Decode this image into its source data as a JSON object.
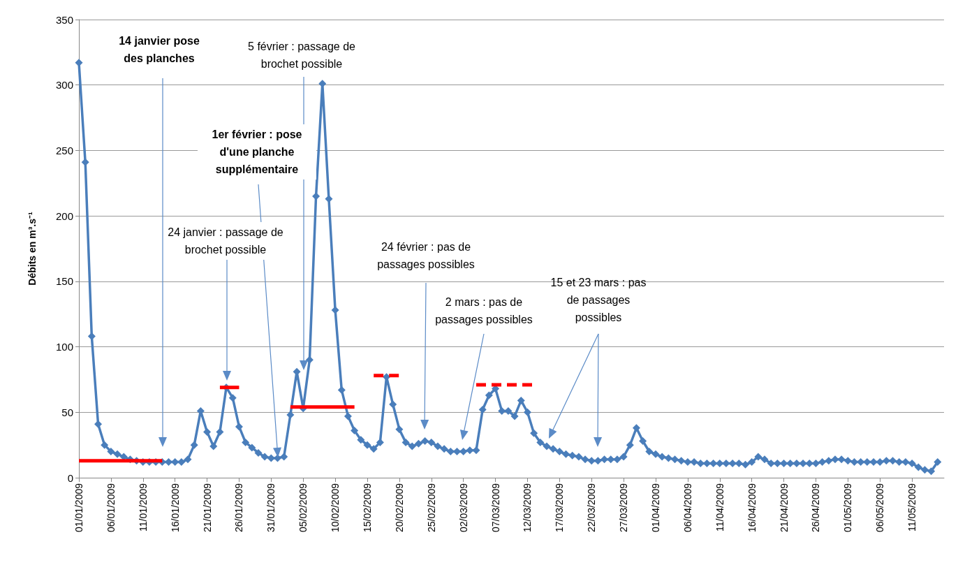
{
  "chart_data": {
    "type": "line",
    "ylabel": "Débits en m³.s⁻¹",
    "xlim": [
      "2009-01-01",
      "2009-05-16"
    ],
    "xticks": [
      {
        "value": "2009-01-01",
        "label": "01/01/2009"
      },
      {
        "value": "2009-01-06",
        "label": "06/01/2009"
      },
      {
        "value": "2009-01-11",
        "label": "11/01/2009"
      },
      {
        "value": "2009-01-16",
        "label": "16/01/2009"
      },
      {
        "value": "2009-01-21",
        "label": "21/01/2009"
      },
      {
        "value": "2009-01-26",
        "label": "26/01/2009"
      },
      {
        "value": "2009-01-31",
        "label": "31/01/2009"
      },
      {
        "value": "2009-02-05",
        "label": "05/02/2009"
      },
      {
        "value": "2009-02-10",
        "label": "10/02/2009"
      },
      {
        "value": "2009-02-15",
        "label": "15/02/2009"
      },
      {
        "value": "2009-02-20",
        "label": "20/02/2009"
      },
      {
        "value": "2009-02-25",
        "label": "25/02/2009"
      },
      {
        "value": "2009-03-02",
        "label": "02/03/2009"
      },
      {
        "value": "2009-03-07",
        "label": "07/03/2009"
      },
      {
        "value": "2009-03-12",
        "label": "12/03/2009"
      },
      {
        "value": "2009-03-17",
        "label": "17/03/2009"
      },
      {
        "value": "2009-03-22",
        "label": "22/03/2009"
      },
      {
        "value": "2009-03-27",
        "label": "27/03/2009"
      },
      {
        "value": "2009-04-01",
        "label": "01/04/2009"
      },
      {
        "value": "2009-04-06",
        "label": "06/04/2009"
      },
      {
        "value": "2009-04-11",
        "label": "11/04/2009"
      },
      {
        "value": "2009-04-16",
        "label": "16/04/2009"
      },
      {
        "value": "2009-04-21",
        "label": "21/04/2009"
      },
      {
        "value": "2009-04-26",
        "label": "26/04/2009"
      },
      {
        "value": "2009-05-01",
        "label": "01/05/2009"
      },
      {
        "value": "2009-05-06",
        "label": "06/05/2009"
      },
      {
        "value": "2009-05-11",
        "label": "11/05/2009"
      }
    ],
    "ylim": [
      0,
      350
    ],
    "yticks": [
      0,
      50,
      100,
      150,
      200,
      250,
      300,
      350
    ],
    "grid": "y",
    "series": [
      {
        "color": "#4a7ebb",
        "marker": "diamond",
        "line_style": "solid",
        "x": [
          "2009-01-01",
          "2009-01-02",
          "2009-01-03",
          "2009-01-04",
          "2009-01-05",
          "2009-01-06",
          "2009-01-07",
          "2009-01-08",
          "2009-01-09",
          "2009-01-10",
          "2009-01-11",
          "2009-01-12",
          "2009-01-13",
          "2009-01-14",
          "2009-01-15",
          "2009-01-16",
          "2009-01-17",
          "2009-01-18",
          "2009-01-19",
          "2009-01-20",
          "2009-01-21",
          "2009-01-22",
          "2009-01-23",
          "2009-01-24",
          "2009-01-25",
          "2009-01-26",
          "2009-01-27",
          "2009-01-28",
          "2009-01-29",
          "2009-01-30",
          "2009-01-31",
          "2009-02-01",
          "2009-02-02",
          "2009-02-03",
          "2009-02-04",
          "2009-02-05",
          "2009-02-06",
          "2009-02-07",
          "2009-02-08",
          "2009-02-09",
          "2009-02-10",
          "2009-02-11",
          "2009-02-12",
          "2009-02-13",
          "2009-02-14",
          "2009-02-15",
          "2009-02-16",
          "2009-02-17",
          "2009-02-18",
          "2009-02-19",
          "2009-02-20",
          "2009-02-21",
          "2009-02-22",
          "2009-02-23",
          "2009-02-24",
          "2009-02-25",
          "2009-02-26",
          "2009-02-27",
          "2009-02-28",
          "2009-03-01",
          "2009-03-02",
          "2009-03-03",
          "2009-03-04",
          "2009-03-05",
          "2009-03-06",
          "2009-03-07",
          "2009-03-08",
          "2009-03-09",
          "2009-03-10",
          "2009-03-11",
          "2009-03-12",
          "2009-03-13",
          "2009-03-14",
          "2009-03-15",
          "2009-03-16",
          "2009-03-17",
          "2009-03-18",
          "2009-03-19",
          "2009-03-20",
          "2009-03-21",
          "2009-03-22",
          "2009-03-23",
          "2009-03-24",
          "2009-03-25",
          "2009-03-26",
          "2009-03-27",
          "2009-03-28",
          "2009-03-29",
          "2009-03-30",
          "2009-03-31",
          "2009-04-01",
          "2009-04-02",
          "2009-04-03",
          "2009-04-04",
          "2009-04-05",
          "2009-04-06",
          "2009-04-07",
          "2009-04-08",
          "2009-04-09",
          "2009-04-10",
          "2009-04-11",
          "2009-04-12",
          "2009-04-13",
          "2009-04-14",
          "2009-04-15",
          "2009-04-16",
          "2009-04-17",
          "2009-04-18",
          "2009-04-19",
          "2009-04-20",
          "2009-04-21",
          "2009-04-22",
          "2009-04-23",
          "2009-04-24",
          "2009-04-25",
          "2009-04-26",
          "2009-04-27",
          "2009-04-28",
          "2009-04-29",
          "2009-04-30",
          "2009-05-01",
          "2009-05-02",
          "2009-05-03",
          "2009-05-04",
          "2009-05-05",
          "2009-05-06",
          "2009-05-07",
          "2009-05-08",
          "2009-05-09",
          "2009-05-10",
          "2009-05-11",
          "2009-05-12",
          "2009-05-13",
          "2009-05-14",
          "2009-05-15"
        ],
        "values": [
          317,
          241,
          108,
          41,
          25,
          20,
          18,
          16,
          14,
          13,
          12,
          12,
          12,
          12,
          12,
          12,
          12,
          14,
          25,
          51,
          35,
          24,
          35,
          69,
          61,
          39,
          27,
          23,
          19,
          16,
          15,
          15,
          16,
          48,
          81,
          53,
          90,
          215,
          301,
          213,
          128,
          67,
          47,
          36,
          29,
          25,
          22,
          27,
          77,
          56,
          37,
          27,
          24,
          26,
          28,
          27,
          24,
          22,
          20,
          20,
          20,
          21,
          21,
          52,
          63,
          68,
          51,
          51,
          47,
          59,
          50,
          34,
          27,
          24,
          22,
          20,
          18,
          17,
          16,
          14,
          13,
          13,
          14,
          14,
          14,
          16,
          25,
          38,
          28,
          20,
          18,
          16,
          15,
          14,
          13,
          12,
          12,
          11,
          11,
          11,
          11,
          11,
          11,
          11,
          10,
          12,
          16,
          14,
          11,
          11,
          11,
          11,
          11,
          11,
          11,
          11,
          12,
          13,
          14,
          14,
          13,
          12,
          12,
          12,
          12,
          12,
          13,
          13,
          12,
          12,
          11,
          8,
          6,
          5,
          12
        ]
      },
      {
        "color": "#ff0000",
        "marker": "none",
        "line_style": "solid",
        "x": [
          "2009-01-01",
          "2009-01-14"
        ],
        "values": [
          13,
          13
        ]
      },
      {
        "color": "#ff0000",
        "marker": "none",
        "line_style": "solid",
        "x": [
          "2009-01-23",
          "2009-01-26"
        ],
        "values": [
          69,
          69
        ]
      },
      {
        "color": "#ff0000",
        "marker": "none",
        "line_style": "solid",
        "x": [
          "2009-02-03",
          "2009-02-13"
        ],
        "values": [
          54,
          54
        ]
      },
      {
        "color": "#ff0000",
        "marker": "none",
        "line_style": "dashed",
        "x": [
          "2009-02-16",
          "2009-02-20"
        ],
        "values": [
          78,
          78
        ]
      },
      {
        "color": "#ff0000",
        "marker": "none",
        "line_style": "dashed",
        "x": [
          "2009-03-04",
          "2009-03-13"
        ],
        "values": [
          71,
          71
        ]
      }
    ],
    "annotations": [
      "14 janvier pose des planches",
      "1er février : pose d'une planche supplémentaire",
      "24 janvier : passage de brochet possible",
      "5 février : passage de brochet possible",
      "24 février : pas de passages possibles",
      "2 mars : pas de passages possibles",
      "15 et 23 mars : pas de passages possibles"
    ]
  }
}
